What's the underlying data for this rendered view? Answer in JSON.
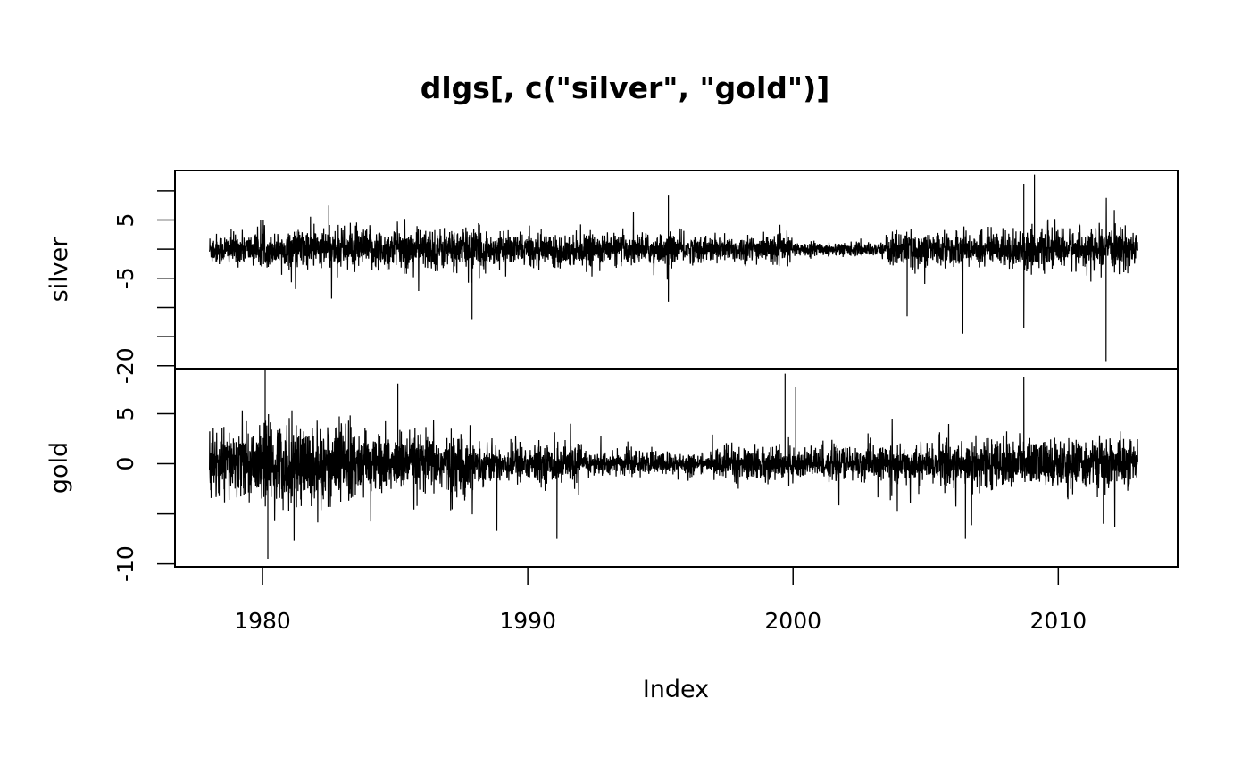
{
  "chart_data": {
    "type": "line",
    "title": "dlgs[, c(\"silver\", \"gold\")]",
    "xlabel": "Index",
    "x_ticks": [
      1980,
      1990,
      2000,
      2010
    ],
    "x_tick_labels": [
      "1980",
      "1990",
      "2000",
      "2010"
    ],
    "x_range": [
      1978.0,
      2013.0
    ],
    "xlim": [
      1976.7,
      2014.5
    ],
    "grid": false,
    "panels": [
      {
        "name": "silver",
        "ylabel": "silver",
        "ylim": [
          -20.5,
          13.5
        ],
        "y_ticks": [
          10,
          5,
          0,
          -5,
          -10,
          -15,
          -20
        ],
        "y_tick_labels": [
          "",
          "5",
          "",
          "-5",
          "",
          "",
          "-20"
        ],
        "extremes": [
          {
            "x": 1982.5,
            "y": 7.5
          },
          {
            "x": 1987.9,
            "y": -12.0
          },
          {
            "x": 1995.3,
            "y": 9.2
          },
          {
            "x": 1995.3,
            "y": -9.0
          },
          {
            "x": 2004.3,
            "y": -11.5
          },
          {
            "x": 2006.4,
            "y": -14.5
          },
          {
            "x": 2008.7,
            "y": 11.2
          },
          {
            "x": 2008.7,
            "y": -13.5
          },
          {
            "x": 2009.1,
            "y": 12.8
          },
          {
            "x": 2011.8,
            "y": -19.2
          }
        ]
      },
      {
        "name": "gold",
        "ylabel": "gold",
        "ylim": [
          -10.3,
          9.5
        ],
        "y_ticks": [
          5,
          0,
          -5,
          -10
        ],
        "y_tick_labels": [
          "5",
          "0",
          "",
          "-10"
        ],
        "extremes": [
          {
            "x": 1980.1,
            "y": 9.5
          },
          {
            "x": 1980.2,
            "y": -9.5
          },
          {
            "x": 1985.1,
            "y": 8.0
          },
          {
            "x": 1991.1,
            "y": -7.5
          },
          {
            "x": 1999.7,
            "y": 9.0
          },
          {
            "x": 2000.1,
            "y": 7.7
          },
          {
            "x": 2006.5,
            "y": -7.5
          },
          {
            "x": 2008.7,
            "y": 8.7
          },
          {
            "x": 2011.7,
            "y": -6.0
          }
        ]
      }
    ]
  }
}
